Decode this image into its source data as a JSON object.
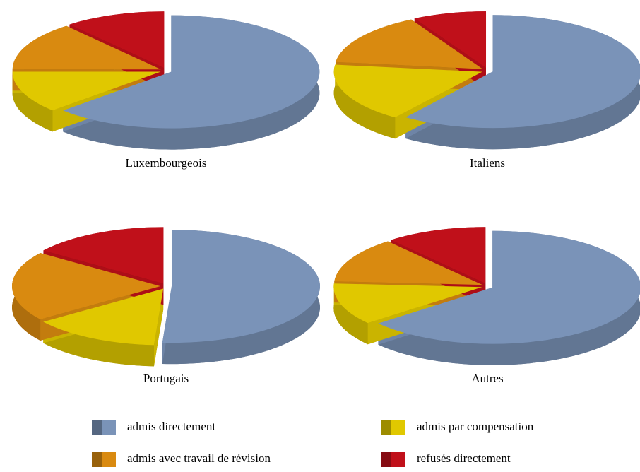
{
  "chart_data": [
    {
      "type": "pie",
      "title": "Luxembourgeois",
      "categories": [
        "admis directement",
        "admis par compensation",
        "admis avec travail de révision",
        "refusés directement"
      ],
      "values": [
        63,
        12,
        14,
        11
      ],
      "colors": [
        "#7a93b8",
        "#e0c800",
        "#d98a10",
        "#c0101a"
      ]
    },
    {
      "type": "pie",
      "title": "Italiens",
      "categories": [
        "admis directement",
        "admis par compensation",
        "admis avec travail de révision",
        "refusés directement"
      ],
      "values": [
        60,
        17,
        15,
        8
      ],
      "colors": [
        "#7a93b8",
        "#e0c800",
        "#d98a10",
        "#c0101a"
      ]
    },
    {
      "type": "pie",
      "title": "Portugais",
      "categories": [
        "admis directement",
        "admis par compensation",
        "admis avec travail de révision",
        "refusés directement"
      ],
      "values": [
        51,
        14,
        20,
        15
      ],
      "colors": [
        "#7a93b8",
        "#e0c800",
        "#d98a10",
        "#c0101a"
      ]
    },
    {
      "type": "pie",
      "title": "Autres",
      "categories": [
        "admis directement",
        "admis par compensation",
        "admis avec travail de révision",
        "refusés directement"
      ],
      "values": [
        64,
        12,
        13,
        11
      ],
      "colors": [
        "#7a93b8",
        "#e0c800",
        "#d98a10",
        "#c0101a"
      ]
    }
  ]
}
